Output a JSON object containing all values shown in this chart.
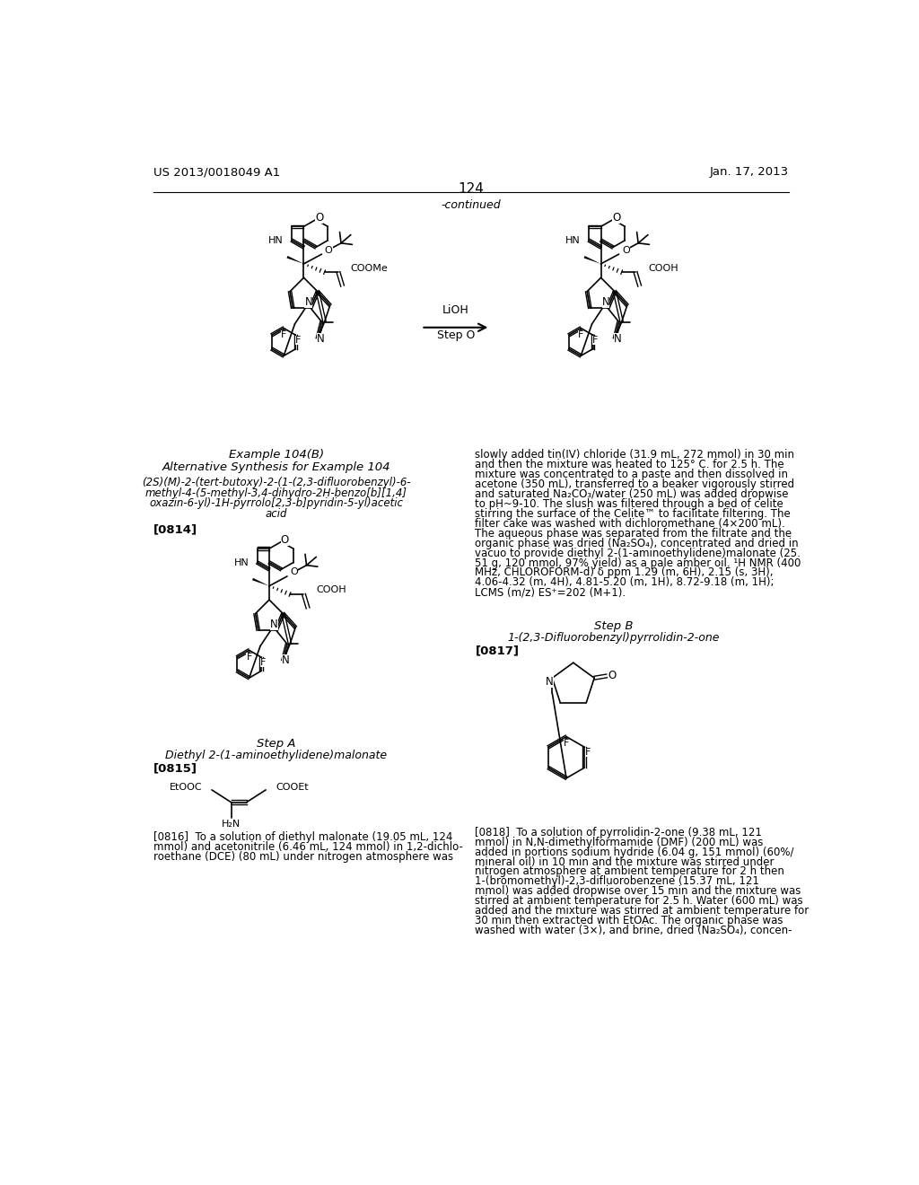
{
  "page_number": "124",
  "patent_left": "US 2013/0018049 A1",
  "patent_right": "Jan. 17, 2013",
  "continued_label": "-continued",
  "background_color": "#ffffff",
  "fig_width": 10.24,
  "fig_height": 13.2,
  "dpi": 100,
  "reaction_arrow_label": "LiOH",
  "reaction_arrow_label2": "Step O",
  "example_title": "Example 104(B)",
  "alt_synthesis_title": "Alternative Synthesis for Example 104",
  "compound_name_lines": [
    "(2S)(M)-2-(tert-butoxy)-2-(1-(2,3-difluorobenzyl)-6-",
    "methyl-4-(5-methyl-3,4-dihydro-2H-benzo[b][1,4]",
    "oxazin-6-yl)-1H-pyrrolo[2,3-b]pyridin-5-yl)acetic",
    "acid"
  ],
  "para_0814": "[0814]",
  "step_a_title": "Step A",
  "step_a_compound": "Diethyl 2-(1-aminoethylidene)malonate",
  "para_0815": "[0815]",
  "step_b_title": "Step B",
  "step_b_compound": "1-(2,3-Difluorobenzyl)pyrrolidin-2-one",
  "para_0817": "[0817]",
  "right_col_text1_lines": [
    "slowly added tin(IV) chloride (31.9 mL, 272 mmol) in 30 min",
    "and then the mixture was heated to 125° C. for 2.5 h. The",
    "mixture was concentrated to a paste and then dissolved in",
    "acetone (350 mL), transferred to a beaker vigorously stirred",
    "and saturated Na₂CO₃/water (250 mL) was added dropwise",
    "to pH~9-10. The slush was filtered through a bed of celite",
    "stirring the surface of the Celite™ to facilitate filtering. The",
    "filter cake was washed with dichloromethane (4×200 mL).",
    "The aqueous phase was separated from the filtrate and the",
    "organic phase was dried (Na₂SO₄), concentrated and dried in",
    "vacuo to provide diethyl 2-(1-aminoethylidene)malonate (25.",
    "51 g, 120 mmol, 97% yield) as a pale amber oil. ¹H NMR (400",
    "MHz, CHLOROFORM-d) δ ppm 1.29 (m, 6H), 2.15 (s, 3H),",
    "4.06-4.32 (m, 4H), 4.81-5.20 (m, 1H), 8.72-9.18 (m, 1H);",
    "LCMS (m/z) ES⁺=202 (M+1)."
  ],
  "para_0816_lines": [
    "[0816]  To a solution of diethyl malonate (19.05 mL, 124",
    "mmol) and acetonitrile (6.46 mL, 124 mmol) in 1,2-dichlo-",
    "roethane (DCE) (80 mL) under nitrogen atmosphere was"
  ],
  "para_0818_lines": [
    "[0818]  To a solution of pyrrolidin-2-one (9.38 mL, 121",
    "mmol) in N,N-dimethylformamide (DMF) (200 mL) was",
    "added in portions sodium hydride (6.04 g, 151 mmol) (60%/",
    "mineral oil) in 10 min and the mixture was stirred under",
    "nitrogen atmosphere at ambient temperature for 2 h then",
    "1-(bromomethyl)-2,3-difluorobenzene (15.37 mL, 121",
    "mmol) was added dropwise over 15 min and the mixture was",
    "stirred at ambient temperature for 2.5 h. Water (600 mL) was",
    "added and the mixture was stirred at ambient temperature for",
    "30 min then extracted with EtOAc. The organic phase was",
    "washed with water (3×), and brine, dried (Na₂SO₄), concen-"
  ]
}
